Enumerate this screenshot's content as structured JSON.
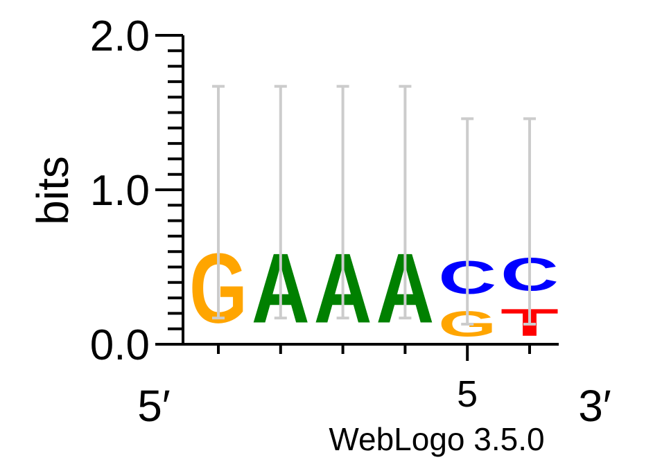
{
  "chart_data": {
    "type": "sequence-logo",
    "ylabel": "bits",
    "ylim": [
      0,
      2
    ],
    "y_ticks": [
      "0.0",
      "1.0",
      "2.0"
    ],
    "x_tick_labels": [
      "5"
    ],
    "x_tick_label_position": 5,
    "end_labels": {
      "left": "5′",
      "right": "3′"
    },
    "footer": "WebLogo 3.5.0",
    "colors": {
      "A": "#008000",
      "C": "#0000ff",
      "G": "#ffa500",
      "T": "#ff0000",
      "error_bar": "#cccccc"
    },
    "positions": [
      {
        "pos": 1,
        "letters": [
          {
            "base": "G",
            "bits": 0.72
          }
        ],
        "error": [
          0.17,
          1.67
        ]
      },
      {
        "pos": 2,
        "letters": [
          {
            "base": "A",
            "bits": 0.72
          }
        ],
        "error": [
          0.17,
          1.67
        ]
      },
      {
        "pos": 3,
        "letters": [
          {
            "base": "A",
            "bits": 0.72
          }
        ],
        "error": [
          0.17,
          1.67
        ]
      },
      {
        "pos": 4,
        "letters": [
          {
            "base": "A",
            "bits": 0.72
          }
        ],
        "error": [
          0.17,
          1.67
        ]
      },
      {
        "pos": 5,
        "letters": [
          {
            "base": "G",
            "bits": 0.26
          },
          {
            "base": "C",
            "bits": 0.34
          }
        ],
        "error": [
          0.13,
          1.46
        ]
      },
      {
        "pos": 6,
        "letters": [
          {
            "base": "T",
            "bits": 0.28
          },
          {
            "base": "C",
            "bits": 0.34
          }
        ],
        "error": [
          0.13,
          1.46
        ]
      }
    ]
  }
}
